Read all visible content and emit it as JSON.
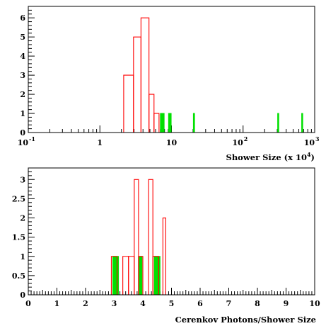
{
  "chart_data": [
    {
      "type": "histogram",
      "xscale": "log",
      "xlim": [
        0.1,
        1000
      ],
      "ylim": [
        0,
        6.6
      ],
      "xlabel": "Shower Size (x 10",
      "xlabel_sup": "4",
      "xlabel_tail": ")",
      "x_major_ticks": [
        {
          "value": 0.1,
          "base": "10",
          "exp": "-1"
        },
        {
          "value": 1,
          "base": "1",
          "exp": ""
        },
        {
          "value": 10,
          "base": "10",
          "exp": ""
        },
        {
          "value": 100,
          "base": "10",
          "exp": "2"
        },
        {
          "value": 1000,
          "base": "10",
          "exp": "3"
        }
      ],
      "y_ticks": [
        {
          "value": 0,
          "label": "0"
        },
        {
          "value": 1,
          "label": "1"
        },
        {
          "value": 2,
          "label": "2"
        },
        {
          "value": 3,
          "label": "3"
        },
        {
          "value": 4,
          "label": "4"
        },
        {
          "value": 5,
          "label": "5"
        },
        {
          "value": 6,
          "label": "6"
        }
      ],
      "series": [
        {
          "color": "#ff0000",
          "fill": false,
          "bins": [
            {
              "x0": 2.15,
              "x1": 2.95,
              "count": 3
            },
            {
              "x0": 2.95,
              "x1": 3.75,
              "count": 5
            },
            {
              "x0": 3.75,
              "x1": 4.85,
              "count": 6
            },
            {
              "x0": 4.85,
              "x1": 5.7,
              "count": 2
            },
            {
              "x0": 5.7,
              "x1": 6.7,
              "count": 1
            }
          ]
        },
        {
          "color": "#00e000",
          "fill": true,
          "bins": [
            {
              "x0": 7.0,
              "x1": 7.9,
              "count": 1
            },
            {
              "x0": 9.1,
              "x1": 9.9,
              "count": 1
            },
            {
              "x0": 20.2,
              "x1": 21.0,
              "count": 1
            },
            {
              "x0": 304,
              "x1": 315,
              "count": 1
            },
            {
              "x0": 658,
              "x1": 680,
              "count": 1
            }
          ]
        }
      ]
    },
    {
      "type": "histogram",
      "xscale": "linear",
      "xlim": [
        0,
        10
      ],
      "ylim": [
        0,
        3.3
      ],
      "xlabel": "Cerenkov Photons/Shower Size",
      "x_ticks": [
        {
          "value": 0,
          "label": "0"
        },
        {
          "value": 1,
          "label": "1"
        },
        {
          "value": 2,
          "label": "2"
        },
        {
          "value": 3,
          "label": "3"
        },
        {
          "value": 4,
          "label": "4"
        },
        {
          "value": 5,
          "label": "5"
        },
        {
          "value": 6,
          "label": "6"
        },
        {
          "value": 7,
          "label": "7"
        },
        {
          "value": 8,
          "label": "8"
        },
        {
          "value": 9,
          "label": "9"
        },
        {
          "value": 10,
          "label": "10"
        }
      ],
      "y_ticks": [
        {
          "value": 0,
          "label": "0"
        },
        {
          "value": 0.5,
          "label": "0.5"
        },
        {
          "value": 1,
          "label": "1"
        },
        {
          "value": 1.5,
          "label": "1.5"
        },
        {
          "value": 2,
          "label": "2"
        },
        {
          "value": 2.5,
          "label": "2.5"
        },
        {
          "value": 3,
          "label": "3"
        }
      ],
      "series": [
        {
          "color": "#ff0000",
          "fill": false,
          "bins": [
            {
              "x0": 2.9,
              "x1": 3.1,
              "count": 1
            },
            {
              "x0": 3.3,
              "x1": 3.5,
              "count": 1
            },
            {
              "x0": 3.5,
              "x1": 3.7,
              "count": 1
            },
            {
              "x0": 3.7,
              "x1": 3.85,
              "count": 3
            },
            {
              "x0": 3.85,
              "x1": 4.0,
              "count": 1
            },
            {
              "x0": 4.2,
              "x1": 4.35,
              "count": 3
            },
            {
              "x0": 4.35,
              "x1": 4.55,
              "count": 1
            },
            {
              "x0": 4.7,
              "x1": 4.8,
              "count": 2
            }
          ]
        },
        {
          "color": "#00e000",
          "fill": true,
          "bins": [
            {
              "x0": 2.95,
              "x1": 3.15,
              "count": 1
            },
            {
              "x0": 3.85,
              "x1": 3.97,
              "count": 1
            },
            {
              "x0": 4.4,
              "x1": 4.6,
              "count": 1
            }
          ]
        }
      ]
    }
  ]
}
